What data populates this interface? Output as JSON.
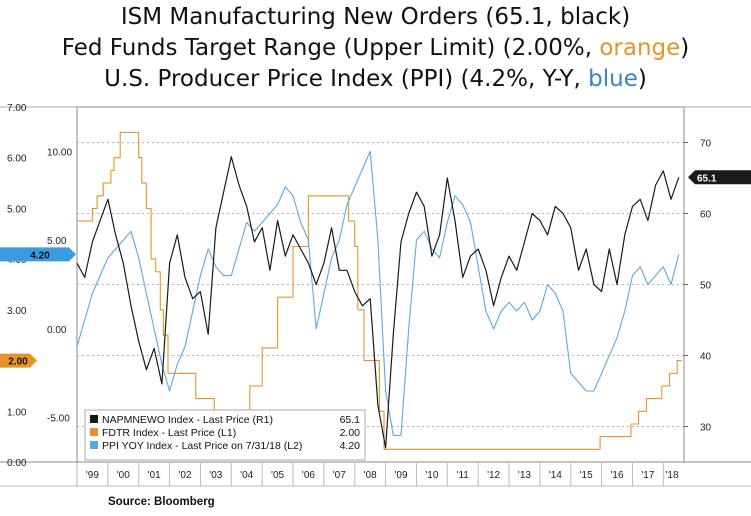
{
  "title": {
    "line1": "ISM Manufacturing New Orders (65.1, black)",
    "line2_prefix": "Fed Funds Target Range (Upper Limit) (2.00%, ",
    "line2_color": "orange",
    "line2_suffix": ")",
    "line3_prefix": "U.S. Producer Price Index (PPI) (4.2%, Y-Y, ",
    "line3_color": "blue",
    "line3_suffix": ")"
  },
  "source": "Source: Bloomberg",
  "colors": {
    "black": "#1a1a1a",
    "orange": "#e8932a",
    "blue": "#5aa9e6",
    "tag_blue": "#3a9be0",
    "tag_orange": "#e8932a"
  },
  "chart_data": {
    "type": "line",
    "axes": {
      "left_outer": {
        "ticks": [
          "7.00",
          "6.00",
          "5.00",
          "4.00",
          "3.00",
          "2.00",
          "1.00",
          "0.00"
        ],
        "series": "FDTR Index",
        "range": [
          0,
          7
        ]
      },
      "left_inner": {
        "ticks": [
          "10.00",
          "5.00",
          "0.00",
          "-5.00"
        ],
        "series": "PPI YOY Index",
        "range": [
          -7.5,
          12.5
        ]
      },
      "right": {
        "ticks": [
          "70",
          "60",
          "50",
          "40",
          "30"
        ],
        "series": "NAPMNEWO Index",
        "range": [
          25,
          75
        ]
      },
      "x": {
        "ticks": [
          "'99",
          "'00",
          "'01",
          "'02",
          "'03",
          "'04",
          "'05",
          "'06",
          "'07",
          "'08",
          "'09",
          "'10",
          "'11",
          "'12",
          "'13",
          "'14",
          "'15",
          "'16",
          "'17",
          "'18"
        ],
        "range": [
          1999.0,
          2018.67
        ]
      }
    },
    "grid": "dashed horizontal",
    "legend_position": "bottom-center",
    "last_value_tags": {
      "right": "65.1",
      "left_blue": "4.20",
      "left_orange": "2.00"
    },
    "series": [
      {
        "name": "NAPMNEWO Index - Last Price (R1)",
        "legend_value": "65.1",
        "color": "black",
        "axis": "right",
        "x": [
          1999.0,
          1999.25,
          1999.5,
          1999.75,
          2000.0,
          2000.25,
          2000.5,
          2000.75,
          2001.0,
          2001.25,
          2001.5,
          2001.75,
          2002.0,
          2002.25,
          2002.5,
          2002.75,
          2003.0,
          2003.25,
          2003.5,
          2003.75,
          2004.0,
          2004.25,
          2004.5,
          2004.75,
          2005.0,
          2005.25,
          2005.5,
          2005.75,
          2006.0,
          2006.25,
          2006.5,
          2006.75,
          2007.0,
          2007.25,
          2007.5,
          2007.75,
          2008.0,
          2008.25,
          2008.5,
          2008.75,
          2009.0,
          2009.25,
          2009.5,
          2009.75,
          2010.0,
          2010.25,
          2010.5,
          2010.75,
          2011.0,
          2011.25,
          2011.5,
          2011.75,
          2012.0,
          2012.25,
          2012.5,
          2012.75,
          2013.0,
          2013.25,
          2013.5,
          2013.75,
          2014.0,
          2014.25,
          2014.5,
          2014.75,
          2015.0,
          2015.25,
          2015.5,
          2015.75,
          2016.0,
          2016.25,
          2016.5,
          2016.75,
          2017.0,
          2017.25,
          2017.5,
          2017.75,
          2018.0,
          2018.25,
          2018.5
        ],
        "values": [
          53,
          51,
          56,
          59,
          62,
          57,
          53,
          47,
          42,
          38,
          41,
          36,
          53,
          57,
          51,
          48,
          49,
          43,
          58,
          63,
          68,
          64,
          61,
          56,
          58,
          52,
          59,
          54,
          57,
          55,
          53,
          50,
          53,
          58,
          52,
          52,
          49,
          47,
          48,
          33,
          27,
          43,
          56,
          60,
          63,
          61,
          54,
          57,
          65,
          59,
          51,
          54,
          55,
          52,
          47,
          51,
          54,
          52,
          56,
          60,
          59,
          57,
          61,
          60,
          58,
          52,
          55,
          50,
          49,
          55,
          50,
          57,
          61,
          62,
          59,
          64,
          66,
          62,
          65.1
        ]
      },
      {
        "name": "FDTR Index - Last Price (L1)",
        "legend_value": "2.00",
        "color": "orange",
        "axis": "left_outer",
        "x": [
          1999.0,
          1999.4,
          1999.5,
          1999.65,
          1999.85,
          2000.1,
          2000.2,
          2000.4,
          2000.95,
          2001.0,
          2001.1,
          2001.25,
          2001.4,
          2001.55,
          2001.7,
          2001.8,
          2001.95,
          2002.85,
          2003.45,
          2004.45,
          2004.6,
          2005.0,
          2005.5,
          2006.0,
          2006.5,
          2007.65,
          2007.8,
          2008.0,
          2008.1,
          2008.3,
          2008.8,
          2008.95,
          2015.95,
          2016.95,
          2017.2,
          2017.45,
          2017.95,
          2018.2,
          2018.45,
          2018.6
        ],
        "values": [
          4.75,
          4.75,
          5.0,
          5.25,
          5.5,
          5.75,
          6.0,
          6.5,
          6.5,
          6.0,
          5.5,
          5.0,
          4.0,
          3.75,
          3.0,
          2.5,
          1.75,
          1.25,
          1.0,
          1.0,
          1.5,
          2.25,
          3.25,
          4.25,
          5.25,
          5.25,
          4.75,
          4.25,
          3.0,
          2.0,
          1.0,
          0.25,
          0.5,
          0.75,
          1.0,
          1.25,
          1.5,
          1.75,
          2.0,
          2.0
        ]
      },
      {
        "name": "PPI YOY Index - Last Price on 7/31/18 (L2)",
        "legend_value": "4.20",
        "color": "blue",
        "axis": "left_inner",
        "x": [
          1999.0,
          1999.25,
          1999.5,
          1999.75,
          2000.0,
          2000.25,
          2000.5,
          2000.75,
          2001.0,
          2001.25,
          2001.5,
          2001.75,
          2002.0,
          2002.25,
          2002.5,
          2002.75,
          2003.0,
          2003.25,
          2003.5,
          2003.75,
          2004.0,
          2004.25,
          2004.5,
          2004.75,
          2005.0,
          2005.25,
          2005.5,
          2005.75,
          2006.0,
          2006.25,
          2006.5,
          2006.75,
          2007.0,
          2007.25,
          2007.5,
          2007.75,
          2008.0,
          2008.25,
          2008.5,
          2008.75,
          2009.0,
          2009.25,
          2009.5,
          2009.75,
          2010.0,
          2010.25,
          2010.5,
          2010.75,
          2011.0,
          2011.25,
          2011.5,
          2011.75,
          2012.0,
          2012.25,
          2012.5,
          2012.75,
          2013.0,
          2013.25,
          2013.5,
          2013.75,
          2014.0,
          2014.25,
          2014.5,
          2014.75,
          2015.0,
          2015.25,
          2015.5,
          2015.75,
          2016.0,
          2016.25,
          2016.5,
          2016.75,
          2017.0,
          2017.25,
          2017.5,
          2017.75,
          2018.0,
          2018.25,
          2018.5
        ],
        "values": [
          -1.0,
          0.5,
          2.0,
          3.0,
          4.0,
          4.5,
          5.0,
          5.5,
          4.0,
          2.0,
          0.0,
          -2.0,
          -3.5,
          -2.0,
          -1.0,
          1.0,
          3.0,
          4.5,
          3.5,
          3.0,
          3.0,
          4.5,
          6.0,
          5.5,
          6.0,
          6.5,
          7.0,
          8.0,
          7.5,
          6.0,
          5.0,
          0.0,
          2.0,
          4.0,
          5.0,
          7.0,
          8.0,
          9.0,
          10.0,
          5.0,
          -3.5,
          -6.0,
          -6.0,
          0.0,
          5.0,
          5.5,
          4.5,
          4.0,
          6.0,
          7.5,
          7.0,
          6.0,
          3.5,
          1.0,
          0.0,
          1.0,
          1.5,
          1.0,
          1.5,
          0.5,
          1.0,
          2.5,
          2.0,
          1.0,
          -2.5,
          -3.0,
          -3.5,
          -3.5,
          -2.5,
          -1.5,
          -0.5,
          1.0,
          3.0,
          3.5,
          2.5,
          3.0,
          3.5,
          2.5,
          4.2
        ]
      }
    ]
  }
}
